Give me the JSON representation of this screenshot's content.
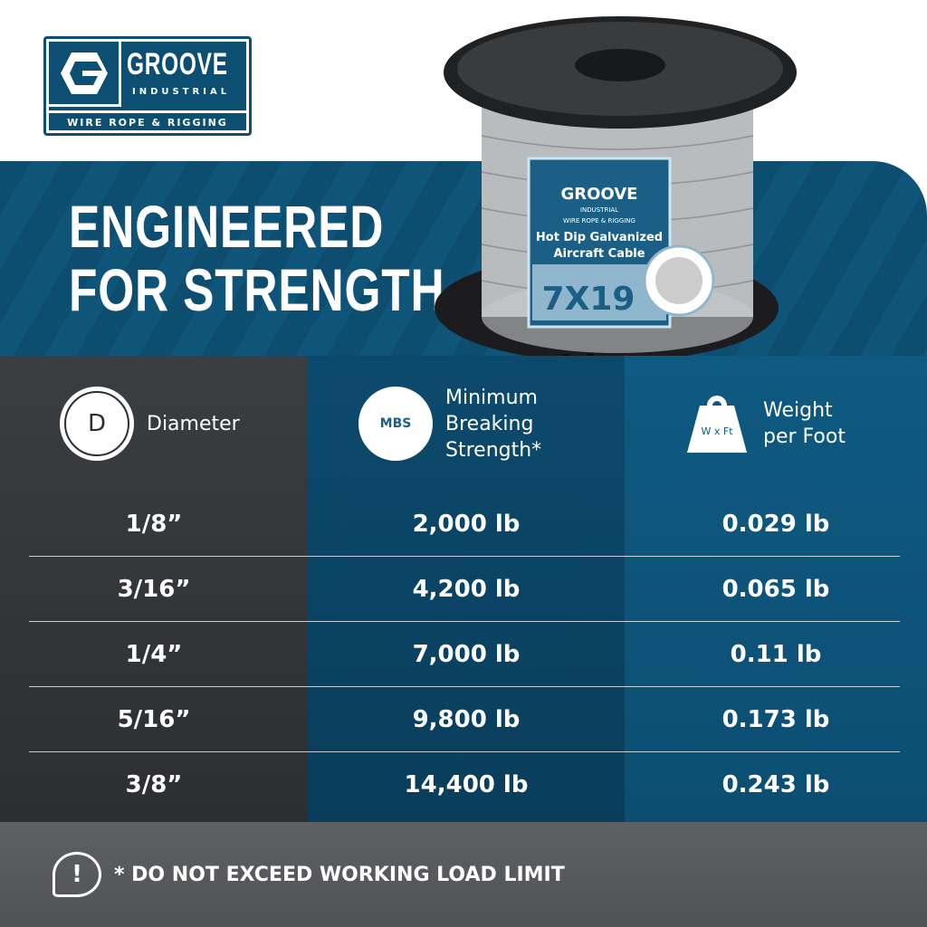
{
  "logo": {
    "name": "GROOVE",
    "sub": "INDUSTRIAL",
    "tagline": "WIRE ROPE & RIGGING"
  },
  "headline": {
    "line1": "ENGINEERED",
    "line2": "FOR STRENGTH"
  },
  "product_label": {
    "brand": "GROOVE",
    "sub": "INDUSTRIAL",
    "tagline": "WIRE ROPE & RIGGING",
    "line1": "Hot Dip Galvanized",
    "line2": "Aircraft Cable",
    "construction": "7X19"
  },
  "colors": {
    "brand_blue": "#0d4f72",
    "dark_gray": "#3b3e41",
    "mid_blue": "#0c4a6d",
    "light_blue": "#0f5a82"
  },
  "table": {
    "headers": [
      {
        "label": "Diameter",
        "icon": "diameter-icon",
        "icon_text": "D"
      },
      {
        "label_lines": [
          "Minimum",
          "Breaking",
          "Strength*"
        ],
        "icon": "mbs-icon",
        "icon_text": "MBS"
      },
      {
        "label_lines": [
          "Weight",
          "per Foot"
        ],
        "icon": "weight-icon",
        "icon_text": "W x Ft"
      }
    ],
    "rows": [
      {
        "diameter": "1/8”",
        "mbs": "2,000 lb",
        "weight": "0.029 lb"
      },
      {
        "diameter": "3/16”",
        "mbs": "4,200 lb",
        "weight": "0.065 lb"
      },
      {
        "diameter": "1/4”",
        "mbs": "7,000 lb",
        "weight": "0.11 lb"
      },
      {
        "diameter": "5/16”",
        "mbs": "9,800 lb",
        "weight": "0.173 lb"
      },
      {
        "diameter": "3/8”",
        "mbs": "14,400 lb",
        "weight": "0.243 lb"
      }
    ]
  },
  "footer": {
    "icon": "exclamation-bubble-icon",
    "text": "* DO NOT EXCEED WORKING LOAD LIMIT"
  }
}
